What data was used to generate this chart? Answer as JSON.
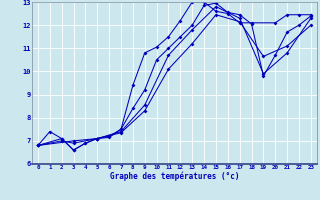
{
  "xlabel": "Graphe des températures (°c)",
  "xlim": [
    -0.5,
    23.5
  ],
  "ylim": [
    6,
    13
  ],
  "xticks": [
    0,
    1,
    2,
    3,
    4,
    5,
    6,
    7,
    8,
    9,
    10,
    11,
    12,
    13,
    14,
    15,
    16,
    17,
    18,
    19,
    20,
    21,
    22,
    23
  ],
  "yticks": [
    6,
    7,
    8,
    9,
    10,
    11,
    12,
    13
  ],
  "bg_color": "#cce8ee",
  "line_color": "#0000bb",
  "grid_color": "#ffffff",
  "lines": [
    {
      "x": [
        0,
        1,
        2,
        3,
        4,
        5,
        6,
        7,
        8,
        9,
        10,
        11,
        12,
        13,
        14,
        15,
        16,
        17,
        18,
        20,
        21,
        22,
        23
      ],
      "y": [
        6.8,
        7.4,
        7.1,
        6.6,
        6.9,
        7.1,
        7.2,
        7.5,
        9.4,
        10.8,
        11.05,
        11.5,
        12.2,
        13.0,
        13.0,
        12.6,
        12.5,
        12.1,
        12.1,
        12.1,
        12.45,
        12.45,
        12.45
      ]
    },
    {
      "x": [
        0,
        2,
        3,
        4,
        5,
        6,
        7,
        8,
        9,
        10,
        11,
        12,
        13,
        14,
        15,
        16,
        17,
        18,
        19,
        20,
        21,
        22,
        23
      ],
      "y": [
        6.8,
        7.1,
        6.6,
        6.9,
        7.1,
        7.15,
        7.5,
        8.4,
        9.2,
        10.5,
        11.0,
        11.5,
        12.0,
        12.85,
        12.95,
        12.55,
        12.45,
        12.05,
        9.8,
        10.7,
        11.7,
        12.0,
        12.4
      ]
    },
    {
      "x": [
        0,
        2,
        3,
        5,
        7,
        9,
        11,
        13,
        15,
        17,
        19,
        21,
        23
      ],
      "y": [
        6.8,
        7.0,
        6.9,
        7.1,
        7.4,
        8.55,
        10.7,
        11.8,
        12.8,
        12.3,
        9.9,
        10.8,
        12.3
      ]
    },
    {
      "x": [
        0,
        3,
        5,
        7,
        9,
        11,
        13,
        15,
        17,
        19,
        21,
        23
      ],
      "y": [
        6.8,
        7.0,
        7.1,
        7.35,
        8.3,
        10.1,
        11.2,
        12.45,
        12.15,
        10.65,
        11.1,
        12.0
      ]
    }
  ]
}
